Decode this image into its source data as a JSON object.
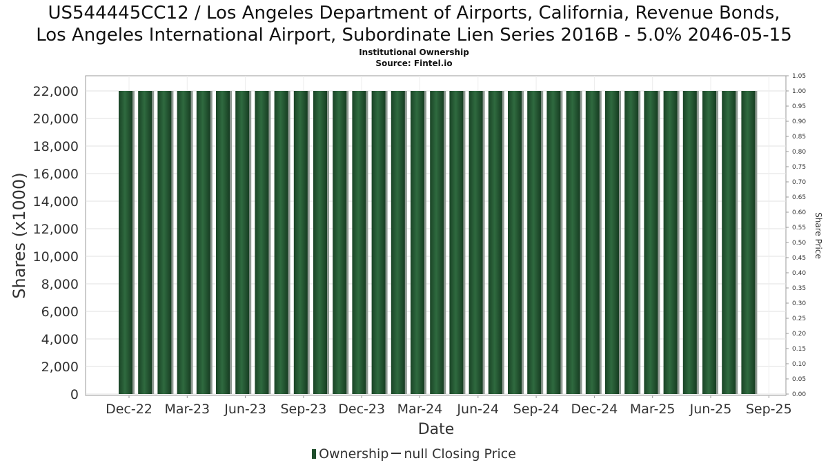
{
  "chart_data": {
    "type": "bar",
    "title_line1": "US544445CC12 / Los Angeles Department of Airports, California, Revenue Bonds,",
    "title_line2": "Los Angeles International Airport, Subordinate Lien Series 2016B - 5.0% 2046-05-15",
    "subtitle_line1": "Institutional Ownership",
    "subtitle_line2": "Source: Fintel.io",
    "xlabel": "Date",
    "ylabel": "Shares (x1000)",
    "y2label": "Share Price",
    "ylim": [
      0,
      23000
    ],
    "y2lim": [
      0,
      1.05
    ],
    "yticks": [
      "0",
      "2,000",
      "4,000",
      "6,000",
      "8,000",
      "10,000",
      "12,000",
      "14,000",
      "16,000",
      "18,000",
      "20,000",
      "22,000"
    ],
    "y2ticks": [
      "0.00",
      "0.05",
      "0.10",
      "0.15",
      "0.20",
      "0.25",
      "0.30",
      "0.35",
      "0.40",
      "0.45",
      "0.50",
      "0.55",
      "0.60",
      "0.65",
      "0.70",
      "0.75",
      "0.80",
      "0.85",
      "0.90",
      "0.95",
      "1.00",
      "1.05"
    ],
    "xticks": [
      "Dec-22",
      "Mar-23",
      "Jun-23",
      "Sep-23",
      "Dec-23",
      "Mar-24",
      "Jun-24",
      "Sep-24",
      "Dec-24",
      "Mar-25",
      "Jun-25",
      "Sep-25"
    ],
    "series": [
      {
        "name": "Ownership",
        "color": "#1e4d2b",
        "values": [
          22000,
          22000,
          22000,
          22000,
          22000,
          22000,
          22000,
          22000,
          22000,
          22000,
          22000,
          22000,
          22000,
          22000,
          22000,
          22000,
          22000,
          22000,
          22000,
          22000,
          22000,
          22000,
          22000,
          22000,
          22000,
          22000,
          22000,
          22000,
          22000,
          22000,
          22000,
          22000,
          22000
        ]
      }
    ],
    "legend": {
      "ownership_label": "Ownership",
      "price_label": "null Closing Price",
      "placement": "bottom"
    },
    "grid": true
  }
}
